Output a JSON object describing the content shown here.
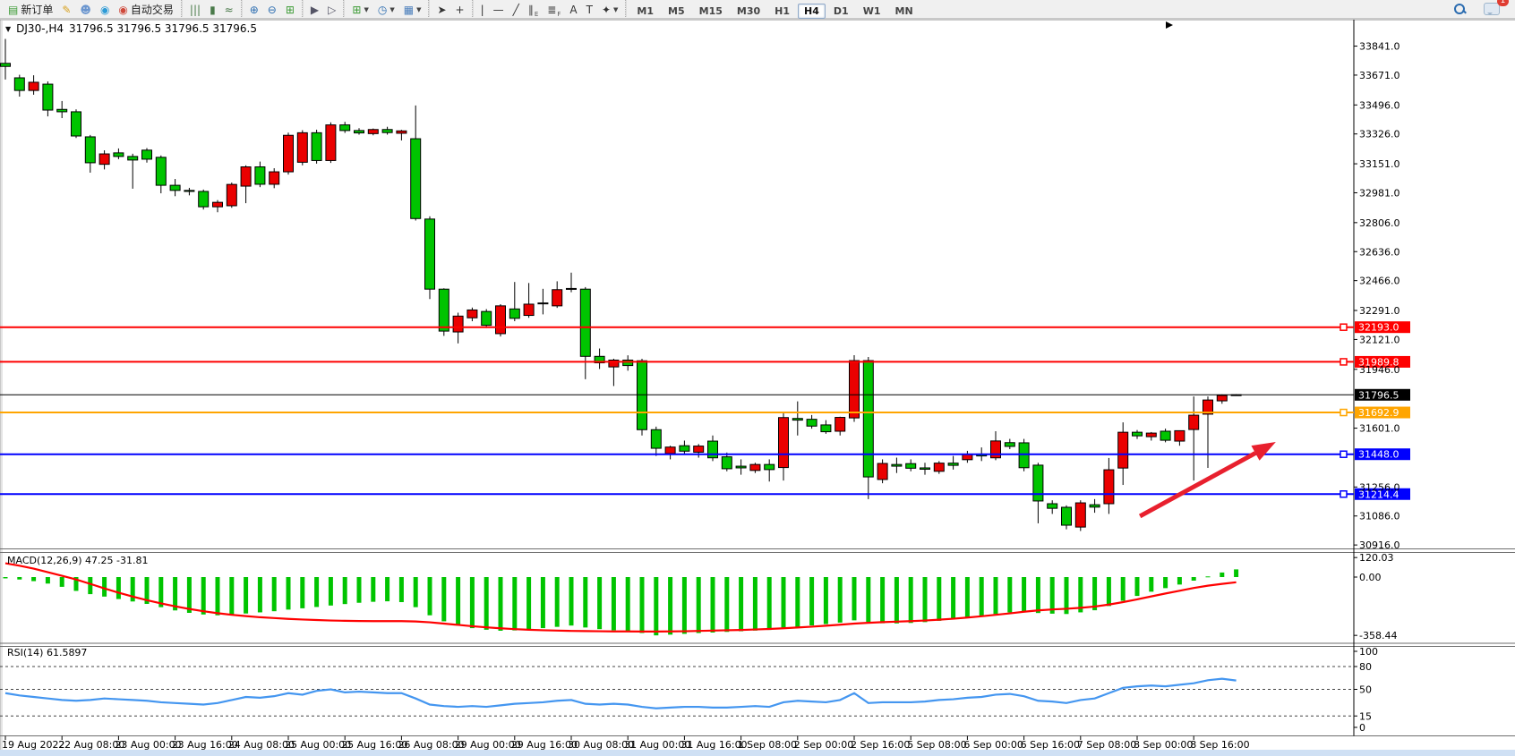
{
  "toolbar": {
    "items": [
      {
        "name": "new-order-button",
        "glyph": "▤",
        "glyph_color": "#3c9b35",
        "label": "新订单"
      },
      {
        "name": "highlighter-icon",
        "glyph": "✎",
        "glyph_color": "#d8a01d"
      },
      {
        "name": "open-account-icon",
        "glyph": "☻",
        "glyph_color": "#6b96cf"
      },
      {
        "name": "signals-icon",
        "glyph": "◉",
        "glyph_color": "#2e9bd6"
      },
      {
        "name": "autotrade-button",
        "glyph": "◉",
        "glyph_color": "#cf4a3c",
        "label": "自动交易"
      },
      {
        "type": "sep"
      },
      {
        "name": "bar-chart-icon",
        "glyph": "|||",
        "glyph_color": "#4a7a4a"
      },
      {
        "name": "candlestick-chart-icon",
        "glyph": "▮",
        "glyph_color": "#4a7a4a"
      },
      {
        "name": "line-chart-icon",
        "glyph": "≈",
        "glyph_color": "#4a7a4a"
      },
      {
        "type": "sep"
      },
      {
        "name": "zoom-in-icon",
        "glyph": "⊕",
        "glyph_color": "#2b6cb0"
      },
      {
        "name": "zoom-out-icon",
        "glyph": "⊖",
        "glyph_color": "#2b6cb0"
      },
      {
        "name": "tile-windows-icon",
        "glyph": "⊞",
        "glyph_color": "#3c9b35"
      },
      {
        "type": "sep"
      },
      {
        "name": "auto-scroll-icon",
        "glyph": "▶",
        "glyph_color": "#556"
      },
      {
        "name": "chart-shift-icon",
        "glyph": "▷",
        "glyph_color": "#556"
      },
      {
        "type": "sep"
      },
      {
        "name": "new-chart-dropdown",
        "glyph": "⊞",
        "glyph_color": "#3c9b35",
        "caret": true
      },
      {
        "name": "period-dropdown",
        "glyph": "◷",
        "glyph_color": "#2b6cb0",
        "caret": true
      },
      {
        "name": "template-dropdown",
        "glyph": "▦",
        "glyph_color": "#4a7ebb",
        "caret": true
      },
      {
        "type": "sep"
      },
      {
        "name": "cursor-icon",
        "glyph": "➤",
        "glyph_color": "#333"
      },
      {
        "name": "crosshair-icon",
        "glyph": "+",
        "glyph_color": "#333"
      },
      {
        "type": "sep"
      },
      {
        "name": "vertical-line-icon",
        "glyph": "|",
        "glyph_color": "#333"
      },
      {
        "name": "horizontal-line-icon",
        "glyph": "—",
        "glyph_color": "#333"
      },
      {
        "name": "trendline-icon",
        "glyph": "╱",
        "glyph_color": "#333"
      },
      {
        "name": "channel-icon",
        "glyph": "∥",
        "glyph_color": "#333",
        "sub": "E"
      },
      {
        "name": "fibonacci-icon",
        "glyph": "≣",
        "glyph_color": "#333",
        "sub": "F"
      },
      {
        "name": "text-icon",
        "glyph": "A",
        "glyph_color": "#333"
      },
      {
        "name": "text-label-icon",
        "glyph": "T",
        "glyph_color": "#333"
      },
      {
        "name": "arrows-icon",
        "glyph": "✦",
        "glyph_color": "#333",
        "caret": true
      },
      {
        "type": "sep"
      }
    ],
    "timeframes": [
      "M1",
      "M5",
      "M15",
      "M30",
      "H1",
      "H4",
      "D1",
      "W1",
      "MN"
    ],
    "active_timeframe": "H4",
    "chat_badge": "1"
  },
  "window": {
    "symbol_period": "DJ30-,H4",
    "quote": "31796.5 31796.5 31796.5 31796.5"
  },
  "chart_data": {
    "type": "candlestick",
    "symbol": "DJ30-",
    "timeframe": "H4",
    "price_convention": "red = bullish, green = bearish (Chinese convention)",
    "colors": {
      "up": "#EA0000",
      "down": "#00C400",
      "macd_hist": "#00C400",
      "macd_signal": "#FF0000",
      "rsi": "#4496F0",
      "arrow": "#E8202E"
    },
    "y_axis_ticks": [
      "33841.0",
      "33671.0",
      "33496.0",
      "33326.0",
      "33151.0",
      "32981.0",
      "32806.0",
      "32636.0",
      "32466.0",
      "32291.0",
      "32121.0",
      "31946.0",
      "31601.0",
      "31256.0",
      "31086.0",
      "30916.0"
    ],
    "current_price": "31796.5",
    "horizontal_lines": [
      {
        "price": 32193.0,
        "label": "32193.0",
        "color": "#FE0000",
        "width": 2
      },
      {
        "price": 31989.8,
        "label": "31989.8",
        "color": "#FE0000",
        "width": 2
      },
      {
        "price": 31796.5,
        "label": "31796.5",
        "color": "#000000",
        "width": 1,
        "is_current": true
      },
      {
        "price": 31692.9,
        "label": "31692.9",
        "color": "#FFA500",
        "width": 2
      },
      {
        "price": 31448.0,
        "label": "31448.0",
        "color": "#0000FE",
        "width": 2
      },
      {
        "price": 31214.4,
        "label": "31214.4",
        "color": "#0000FE",
        "width": 2
      }
    ],
    "x_labels": [
      "19 Aug 2022",
      "22 Aug 08:00",
      "23 Aug 00:00",
      "23 Aug 16:00",
      "24 Aug 08:00",
      "25 Aug 00:00",
      "25 Aug 16:00",
      "26 Aug 08:00",
      "29 Aug 00:00",
      "29 Aug 16:00",
      "30 Aug 08:00",
      "31 Aug 00:00",
      "31 Aug 16:00",
      "1 Sep 08:00",
      "2 Sep 00:00",
      "2 Sep 16:00",
      "5 Sep 08:00",
      "6 Sep 00:00",
      "6 Sep 16:00",
      "7 Sep 08:00",
      "8 Sep 00:00",
      "8 Sep 16:00"
    ],
    "candles": [
      [
        33740,
        33883,
        33645,
        33722
      ],
      [
        33655,
        33673,
        33545,
        33581
      ],
      [
        33581,
        33670,
        33556,
        33629
      ],
      [
        33618,
        33634,
        33429,
        33466
      ],
      [
        33470,
        33519,
        33419,
        33456
      ],
      [
        33456,
        33470,
        33302,
        33314
      ],
      [
        33309,
        33320,
        33099,
        33157
      ],
      [
        33148,
        33230,
        33118,
        33209
      ],
      [
        33215,
        33241,
        33178,
        33194
      ],
      [
        33194,
        33210,
        33005,
        33173
      ],
      [
        33231,
        33243,
        33158,
        33178
      ],
      [
        33189,
        33200,
        32978,
        33025
      ],
      [
        33025,
        33062,
        32961,
        32995
      ],
      [
        32995,
        33010,
        32966,
        32989
      ],
      [
        32989,
        33000,
        32883,
        32899
      ],
      [
        32899,
        32938,
        32867,
        32925
      ],
      [
        32905,
        33041,
        32893,
        33030
      ],
      [
        33020,
        33142,
        32920,
        33133
      ],
      [
        33133,
        33164,
        33014,
        33031
      ],
      [
        33031,
        33125,
        33008,
        33104
      ],
      [
        33104,
        33334,
        33088,
        33318
      ],
      [
        33160,
        33348,
        33142,
        33333
      ],
      [
        33333,
        33351,
        33152,
        33170
      ],
      [
        33170,
        33394,
        33156,
        33379
      ],
      [
        33379,
        33397,
        33332,
        33346
      ],
      [
        33346,
        33360,
        33322,
        33332
      ],
      [
        33328,
        33358,
        33318,
        33352
      ],
      [
        33352,
        33368,
        33322,
        33334
      ],
      [
        33330,
        33350,
        33288,
        33344
      ],
      [
        33298,
        33493,
        32818,
        32830
      ],
      [
        32827,
        32843,
        32358,
        32416
      ],
      [
        32416,
        32421,
        32142,
        32170
      ],
      [
        32165,
        32278,
        32098,
        32258
      ],
      [
        32248,
        32308,
        32228,
        32294
      ],
      [
        32285,
        32299,
        32188,
        32204
      ],
      [
        32155,
        32328,
        32138,
        32318
      ],
      [
        32300,
        32458,
        32228,
        32245
      ],
      [
        32262,
        32452,
        32248,
        32328
      ],
      [
        32335,
        32418,
        32268,
        32330
      ],
      [
        32318,
        32462,
        32306,
        32413
      ],
      [
        32420,
        32513,
        32398,
        32416
      ],
      [
        32416,
        32428,
        31888,
        32022
      ],
      [
        32022,
        32068,
        31948,
        31984
      ],
      [
        31960,
        32008,
        31848,
        32000
      ],
      [
        32000,
        32028,
        31938,
        31968
      ],
      [
        31996,
        32008,
        31558,
        31592
      ],
      [
        31592,
        31610,
        31438,
        31483
      ],
      [
        31452,
        31498,
        31418,
        31490
      ],
      [
        31498,
        31528,
        31448,
        31466
      ],
      [
        31460,
        31508,
        31428,
        31496
      ],
      [
        31525,
        31558,
        31408,
        31427
      ],
      [
        31433,
        31458,
        31348,
        31363
      ],
      [
        31378,
        31418,
        31328,
        31368
      ],
      [
        31353,
        31398,
        31338,
        31388
      ],
      [
        31388,
        31418,
        31288,
        31358
      ],
      [
        31370,
        31688,
        31294,
        31663
      ],
      [
        31658,
        31758,
        31558,
        31648
      ],
      [
        31653,
        31678,
        31598,
        31613
      ],
      [
        31620,
        31648,
        31568,
        31580
      ],
      [
        31583,
        31668,
        31558,
        31664
      ],
      [
        31661,
        32029,
        31638,
        31997
      ],
      [
        31997,
        32018,
        31185,
        31315
      ],
      [
        31300,
        31418,
        31278,
        31394
      ],
      [
        31388,
        31428,
        31338,
        31378
      ],
      [
        31393,
        31418,
        31348,
        31366
      ],
      [
        31368,
        31398,
        31328,
        31360
      ],
      [
        31348,
        31408,
        31333,
        31396
      ],
      [
        31396,
        31438,
        31358,
        31383
      ],
      [
        31416,
        31468,
        31398,
        31447
      ],
      [
        31448,
        31488,
        31408,
        31438
      ],
      [
        31427,
        31583,
        31413,
        31526
      ],
      [
        31516,
        31538,
        31478,
        31494
      ],
      [
        31515,
        31538,
        31348,
        31369
      ],
      [
        31384,
        31398,
        31043,
        31174
      ],
      [
        31158,
        31178,
        31098,
        31131
      ],
      [
        31137,
        31148,
        31008,
        31032
      ],
      [
        31021,
        31178,
        30998,
        31163
      ],
      [
        31152,
        31185,
        31105,
        31138
      ],
      [
        31158,
        31426,
        31098,
        31357
      ],
      [
        31367,
        31635,
        31268,
        31577
      ],
      [
        31577,
        31590,
        31538,
        31556
      ],
      [
        31551,
        31578,
        31528,
        31572
      ],
      [
        31583,
        31598,
        31518,
        31530
      ],
      [
        31525,
        31588,
        31498,
        31586
      ],
      [
        31593,
        31787,
        31294,
        31677
      ],
      [
        31683,
        31787,
        31368,
        31766
      ],
      [
        31761,
        31799,
        31744,
        31793
      ],
      [
        31797,
        31800,
        31792,
        31796.5
      ]
    ],
    "indicators": {
      "macd": {
        "label": "MACD(12,26,9) 47.25 -31.81",
        "axis_ticks": [
          "120.03",
          "0.00",
          "-358.44"
        ],
        "histogram": [
          -8,
          -15,
          -25,
          -40,
          -60,
          -85,
          -105,
          -120,
          -135,
          -150,
          -165,
          -185,
          -205,
          -220,
          -230,
          -235,
          -230,
          -224,
          -217,
          -210,
          -200,
          -192,
          -184,
          -175,
          -166,
          -158,
          -152,
          -149,
          -154,
          -185,
          -235,
          -272,
          -298,
          -314,
          -324,
          -330,
          -328,
          -322,
          -314,
          -306,
          -298,
          -310,
          -320,
          -327,
          -331,
          -344,
          -358.44,
          -354,
          -349,
          -344,
          -341,
          -337,
          -333,
          -329,
          -325,
          -316,
          -306,
          -297,
          -289,
          -280,
          -266,
          -276,
          -284,
          -285,
          -282,
          -277,
          -269,
          -259,
          -249,
          -239,
          -227,
          -217,
          -211,
          -221,
          -225,
          -227,
          -217,
          -204,
          -178,
          -146,
          -116,
          -90,
          -68,
          -46,
          -22,
          4,
          28,
          47.25
        ],
        "signal": [
          85,
          70,
          52,
          30,
          8,
          -15,
          -42,
          -70,
          -96,
          -120,
          -142,
          -162,
          -180,
          -196,
          -210,
          -222,
          -232,
          -240,
          -247,
          -252,
          -257,
          -261,
          -264,
          -267,
          -269,
          -270,
          -271,
          -271,
          -271,
          -273,
          -278,
          -286,
          -294,
          -302,
          -309,
          -315,
          -320,
          -324,
          -327,
          -329,
          -331,
          -332,
          -333,
          -334,
          -334,
          -335,
          -335,
          -334,
          -333,
          -331,
          -329,
          -327,
          -325,
          -322,
          -319,
          -315,
          -310,
          -305,
          -299,
          -293,
          -286,
          -281,
          -277,
          -274,
          -271,
          -267,
          -262,
          -256,
          -249,
          -241,
          -232,
          -223,
          -213,
          -205,
          -199,
          -195,
          -189,
          -181,
          -169,
          -154,
          -137,
          -119,
          -101,
          -84,
          -67,
          -53,
          -42,
          -31.81
        ]
      },
      "rsi": {
        "label": "RSI(14) 61.5897",
        "axis_ticks": [
          "100",
          "80",
          "50",
          "15",
          "0"
        ],
        "levels": [
          80,
          50,
          15
        ],
        "series": [
          45,
          42,
          40,
          38,
          36,
          35,
          36,
          38,
          37,
          36,
          35,
          33,
          32,
          31,
          30,
          32,
          36,
          40,
          39,
          41,
          45,
          43,
          48,
          50,
          46,
          47,
          46,
          45,
          45,
          38,
          30,
          28,
          27,
          28,
          27,
          29,
          31,
          32,
          33,
          35,
          36,
          31,
          30,
          31,
          30,
          27,
          25,
          26,
          27,
          27,
          26,
          26,
          27,
          28,
          27,
          33,
          35,
          34,
          33,
          36,
          45,
          32,
          33,
          33,
          33,
          34,
          36,
          37,
          39,
          40,
          43,
          44,
          41,
          35,
          34,
          32,
          36,
          38,
          45,
          52,
          54,
          55,
          54,
          56,
          58,
          62,
          64,
          61.5897
        ]
      }
    },
    "annotations": [
      {
        "type": "trend-arrow",
        "color": "#E8202E",
        "from": {
          "bar": 80.2,
          "price": 31085
        },
        "to": {
          "bar": 89.8,
          "price": 31520
        }
      }
    ]
  }
}
